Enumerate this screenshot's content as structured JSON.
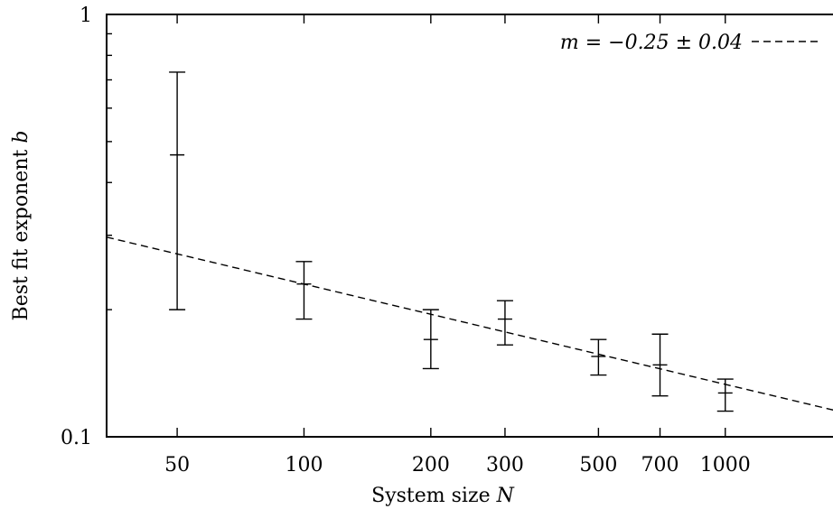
{
  "chart_data": {
    "type": "scatter",
    "xlabel": "System size",
    "xlabel_var": "N",
    "ylabel": "Best fit exponent",
    "ylabel_var": "b",
    "x_scale": "log",
    "y_scale": "log",
    "xlim": [
      34,
      1950
    ],
    "ylim": [
      0.1,
      1
    ],
    "x_ticks": [
      50,
      100,
      200,
      300,
      500,
      700,
      1000
    ],
    "y_ticks": [
      0.1,
      1
    ],
    "y_tick_labels": [
      "0.1",
      "1"
    ],
    "grid": false,
    "legend_position": "top-right",
    "series": [
      {
        "kind": "errorbar",
        "points": [
          {
            "x": 50,
            "y": 0.465,
            "ylo": 0.2,
            "yhi": 0.73
          },
          {
            "x": 100,
            "y": 0.23,
            "ylo": 0.19,
            "yhi": 0.26
          },
          {
            "x": 200,
            "y": 0.17,
            "ylo": 0.145,
            "yhi": 0.2
          },
          {
            "x": 300,
            "y": 0.19,
            "ylo": 0.165,
            "yhi": 0.21
          },
          {
            "x": 500,
            "y": 0.155,
            "ylo": 0.14,
            "yhi": 0.17
          },
          {
            "x": 700,
            "y": 0.148,
            "ylo": 0.125,
            "yhi": 0.175
          },
          {
            "x": 1000,
            "y": 0.127,
            "ylo": 0.115,
            "yhi": 0.137
          }
        ]
      },
      {
        "kind": "fit-line",
        "name": "m = −0.25 ± 0.04",
        "style": "dashed",
        "points": [
          {
            "x": 34,
            "y": 0.297
          },
          {
            "x": 1950,
            "y": 0.1136
          }
        ]
      }
    ]
  }
}
